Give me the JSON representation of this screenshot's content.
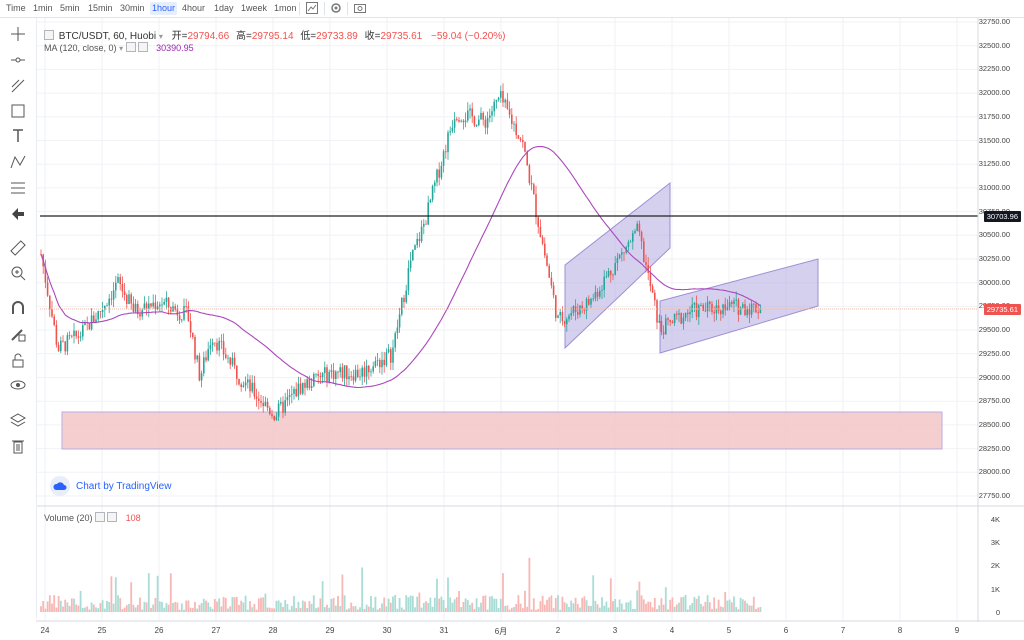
{
  "toolbar": {
    "timeframes": [
      {
        "label": "Time",
        "active": false
      },
      {
        "label": "1min",
        "active": false
      },
      {
        "label": "5min",
        "active": false
      },
      {
        "label": "15min",
        "active": false
      },
      {
        "label": "30min",
        "active": false
      },
      {
        "label": "1hour",
        "active": true
      },
      {
        "label": "4hour",
        "active": false
      },
      {
        "label": "1day",
        "active": false
      },
      {
        "label": "1week",
        "active": false
      },
      {
        "label": "1mon",
        "active": false
      }
    ],
    "icons": [
      "chart-type-icon",
      "settings-icon",
      "screenshot-icon"
    ]
  },
  "left_tools": [
    "crosshair-icon",
    "horizontal-line-icon",
    "trend-line-icon",
    "rectangle-icon",
    "text-icon",
    "pattern-icon",
    "fib-retracement-icon",
    "arrow-left-icon",
    "ruler-icon",
    "zoom-in-icon",
    "magnet-icon",
    "lock-drawing-icon",
    "unlock-icon",
    "eye-icon",
    "layers-icon",
    "trash-icon"
  ],
  "legend": {
    "symbol": "BTC/USDT, 60, Huobi",
    "open_label": "开=",
    "open": "29794.66",
    "high_label": "高=",
    "high": "29795.14",
    "low_label": "低=",
    "low": "29733.89",
    "close_label": "收=",
    "close": "29735.61",
    "change": "−59.04 (−0.20%)",
    "ma_label": "MA (120, close, 0)",
    "ma_value": "30390.95"
  },
  "volume_legend": {
    "label": "Volume (20)",
    "value": "108"
  },
  "watermark": "Chart by TradingView",
  "price_axis": [
    "32750.00",
    "32500.00",
    "32250.00",
    "32000.00",
    "31750.00",
    "31500.00",
    "31250.00",
    "31000.00",
    "30750.00",
    "30500.00",
    "30250.00",
    "30000.00",
    "29750.00",
    "29500.00",
    "29250.00",
    "29000.00",
    "28750.00",
    "28500.00",
    "28250.00",
    "28000.00",
    "27750.00"
  ],
  "volume_axis": [
    "4K",
    "3K",
    "2K",
    "1K",
    "0"
  ],
  "date_axis": [
    "24",
    "25",
    "26",
    "27",
    "28",
    "29",
    "30",
    "31",
    "6月",
    "2",
    "3",
    "4",
    "5",
    "6",
    "7",
    "8",
    "9"
  ],
  "horizontal_line_price": "30703.96",
  "last_price_tag": "29735.61",
  "colors": {
    "up": "#26a69a",
    "down": "#ef5350",
    "ma": "#ab47bc",
    "channel": "#9c8fd6",
    "zone": "#f4c7c7"
  },
  "chart_data": {
    "type": "candlestick",
    "title": "BTC/USDT, 60, Huobi",
    "ylim": [
      27700,
      32800
    ],
    "price_path": [
      {
        "x": "24",
        "y": 30300
      },
      {
        "x": "24.3",
        "y": 29300
      },
      {
        "x": "24.7",
        "y": 29450
      },
      {
        "x": "25",
        "y": 29700
      },
      {
        "x": "25.3",
        "y": 30000
      },
      {
        "x": "25.6",
        "y": 29700
      },
      {
        "x": "26",
        "y": 29800
      },
      {
        "x": "26.5",
        "y": 29650
      },
      {
        "x": "26.8",
        "y": 29000
      },
      {
        "x": "27",
        "y": 29450
      },
      {
        "x": "27.5",
        "y": 29000
      },
      {
        "x": "28",
        "y": 28600
      },
      {
        "x": "28.5",
        "y": 28900
      },
      {
        "x": "29",
        "y": 29050
      },
      {
        "x": "29.5",
        "y": 29050
      },
      {
        "x": "30",
        "y": 29250
      },
      {
        "x": "30.4",
        "y": 30200
      },
      {
        "x": "30.8",
        "y": 30650
      },
      {
        "x": "31",
        "y": 31800
      },
      {
        "x": "31.5",
        "y": 31700
      },
      {
        "x": "6月",
        "y": 31950
      },
      {
        "x": "1.5",
        "y": 31500
      },
      {
        "x": "2",
        "y": 29600
      },
      {
        "x": "2.5",
        "y": 29800
      },
      {
        "x": "3",
        "y": 30200
      },
      {
        "x": "3.4",
        "y": 30550
      },
      {
        "x": "3.8",
        "y": 29500
      },
      {
        "x": "4.3",
        "y": 29700
      },
      {
        "x": "5",
        "y": 29750
      },
      {
        "x": "5.6",
        "y": 29735
      }
    ],
    "ma_series": {
      "name": "MA (120, close, 0)"
    },
    "volume": {
      "name": "Volume (20)",
      "ylim": [
        0,
        4300
      ]
    }
  }
}
